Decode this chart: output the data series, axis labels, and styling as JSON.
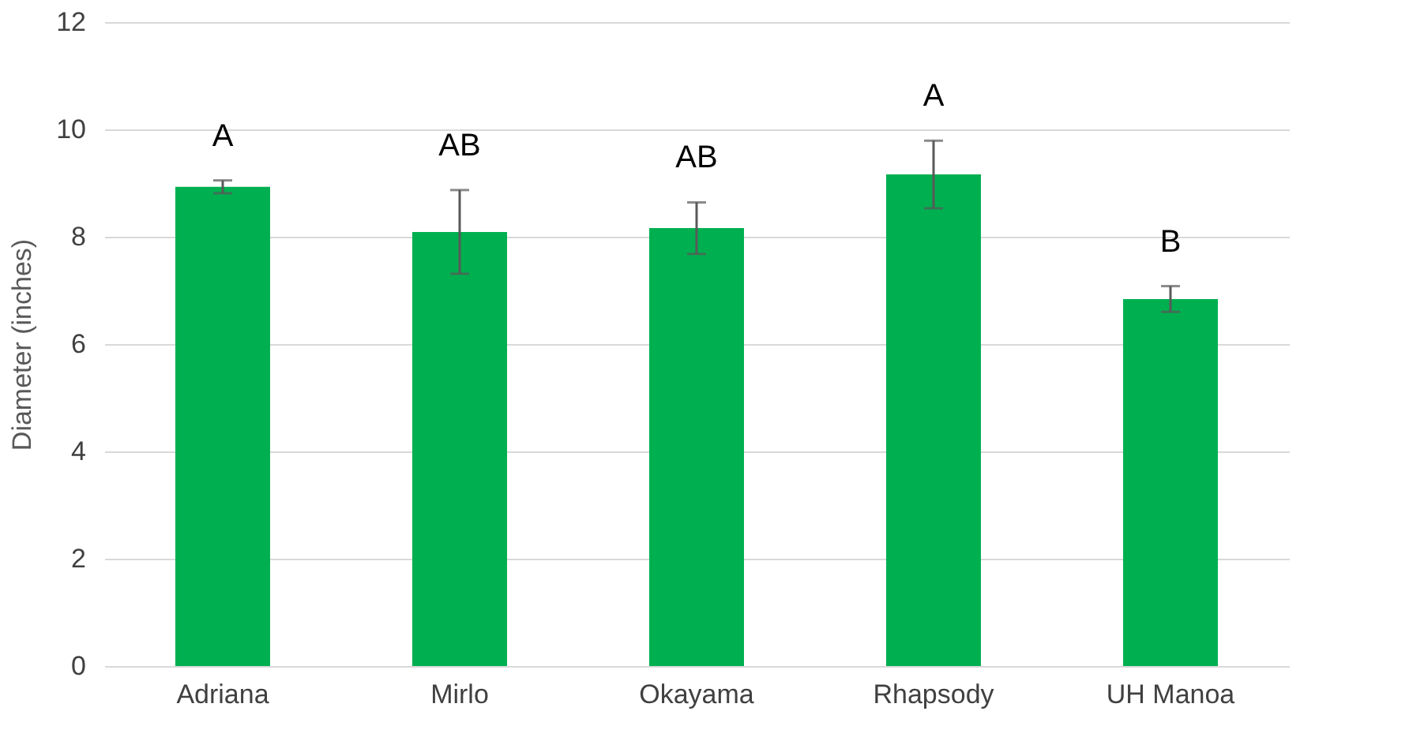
{
  "chart_data": {
    "type": "bar",
    "ylabel": "Diameter (inches)",
    "categories": [
      "Adriana",
      "Mirlo",
      "Okayama",
      "Rhapsody",
      "UH Manoa"
    ],
    "values": [
      8.93,
      8.09,
      8.16,
      9.16,
      6.84
    ],
    "errors": [
      0.12,
      0.78,
      0.48,
      0.63,
      0.24
    ],
    "color": "#00b050",
    "ylim": [
      0,
      12
    ],
    "yticks": [
      0,
      2,
      4,
      6,
      8,
      10,
      12
    ],
    "grid": "y",
    "annotations": [
      "A",
      "AB",
      "AB",
      "A",
      "B"
    ]
  }
}
